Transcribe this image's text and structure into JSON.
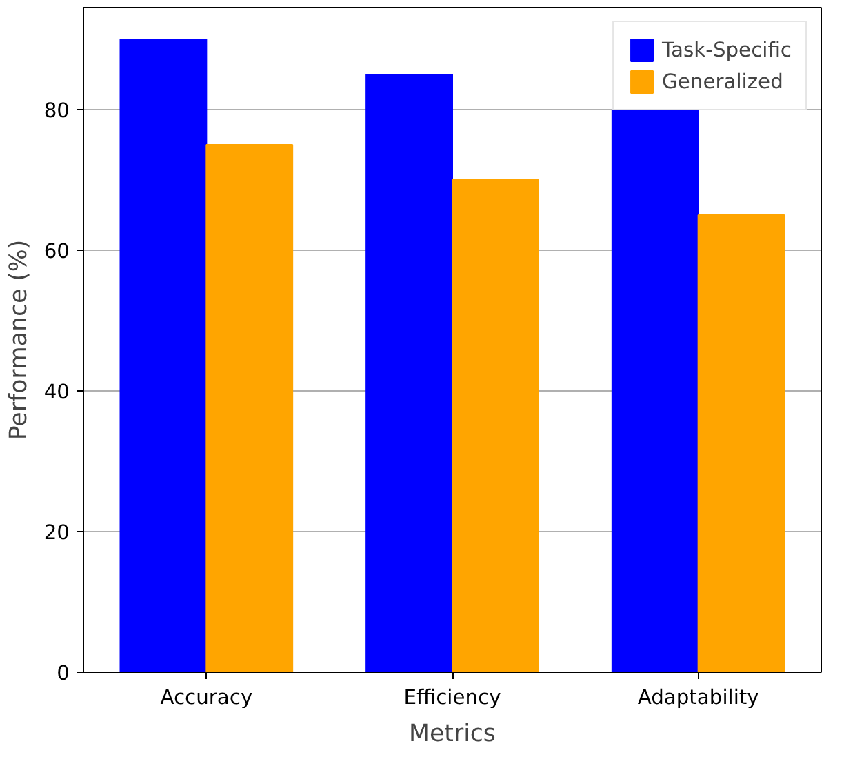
{
  "chart_data": {
    "type": "bar",
    "xlabel": "Metrics",
    "ylabel": "Performance (%)",
    "categories": [
      "Accuracy",
      "Efficiency",
      "Adaptability"
    ],
    "series": [
      {
        "name": "Task-Specific",
        "color": "#0000ff",
        "values": [
          90,
          85,
          80
        ]
      },
      {
        "name": "Generalized",
        "color": "#ffa500",
        "values": [
          75,
          70,
          65
        ]
      }
    ],
    "ylim": [
      0,
      94.5
    ],
    "yticks": [
      0,
      20,
      40,
      60,
      80
    ],
    "grid": "y",
    "legend": "top right"
  }
}
